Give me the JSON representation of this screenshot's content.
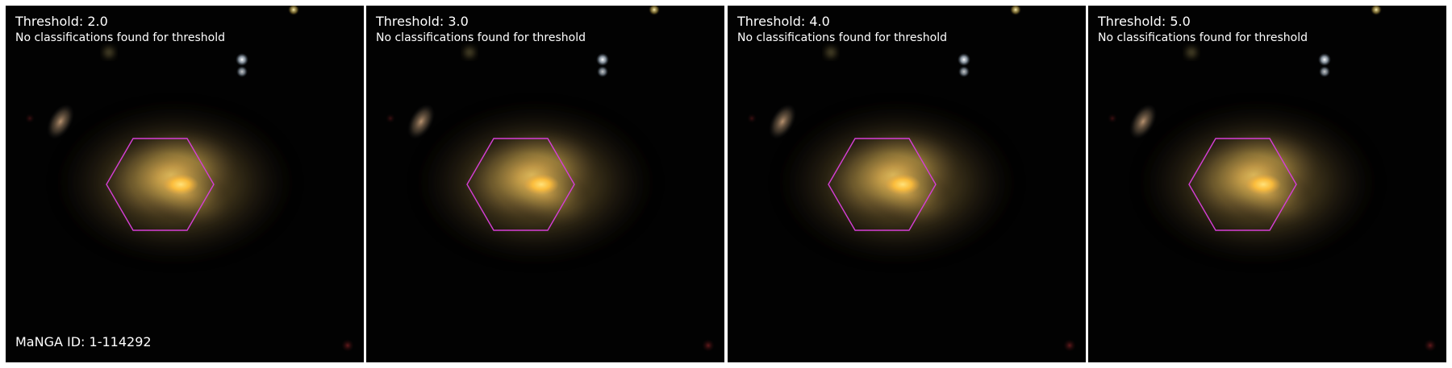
{
  "panels": [
    {
      "title": "Threshold: 2.0",
      "subtitle": "No classifications found for threshold"
    },
    {
      "title": "Threshold: 3.0",
      "subtitle": "No classifications found for threshold"
    },
    {
      "title": "Threshold: 4.0",
      "subtitle": "No classifications found for threshold"
    },
    {
      "title": "Threshold: 5.0",
      "subtitle": "No classifications found for threshold"
    }
  ],
  "manga_id": "MaNGA ID: 1-114292",
  "colors": {
    "background": "#020202",
    "galaxy_core": "#ffc94a",
    "galaxy_halo": "#b7913f",
    "ifu_hexagon": "#d63fd6"
  },
  "icons": [
    "galaxy-image",
    "ifu-hexagon-outline"
  ]
}
